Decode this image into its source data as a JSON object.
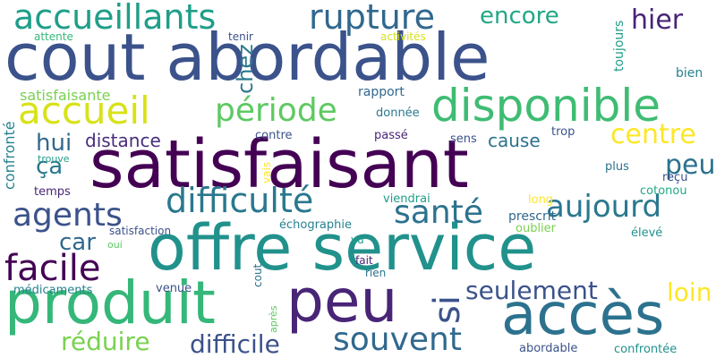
{
  "cloud": {
    "words": [
      {
        "text": "cout abordable",
        "color": "#3b528b"
      },
      {
        "text": "satisfaisant",
        "color": "#440154"
      },
      {
        "text": "offre service",
        "color": "#21918c"
      },
      {
        "text": "produit",
        "color": "#35b779"
      },
      {
        "text": "peu",
        "color": "#482576"
      },
      {
        "text": "accès",
        "color": "#2c728e"
      },
      {
        "text": "disponible",
        "color": "#3fbc73"
      },
      {
        "text": "accueillants",
        "color": "#1f9e89"
      },
      {
        "text": "rupture",
        "color": "#31688e"
      },
      {
        "text": "accueil",
        "color": "#d8e219"
      },
      {
        "text": "période",
        "color": "#5ec962"
      },
      {
        "text": "difficulté",
        "color": "#2a788e"
      },
      {
        "text": "agents",
        "color": "#3b528b"
      },
      {
        "text": "santé",
        "color": "#2c728e"
      },
      {
        "text": "facile",
        "color": "#440154"
      },
      {
        "text": "seulement",
        "color": "#3b528b"
      },
      {
        "text": "souvent",
        "color": "#31688e"
      },
      {
        "text": "réduire",
        "color": "#7ad151"
      },
      {
        "text": "difficile",
        "color": "#3b528b"
      },
      {
        "text": "aujourd",
        "color": "#2a788e"
      },
      {
        "text": "centre",
        "color": "#fde725"
      },
      {
        "text": "encore",
        "color": "#22a884"
      },
      {
        "text": "hier",
        "color": "#482576"
      },
      {
        "text": "peut",
        "color": "#2c728e"
      },
      {
        "text": "loin",
        "color": "#fde725"
      },
      {
        "text": "si",
        "color": "#3b528b"
      },
      {
        "text": "hui",
        "color": "#31688e"
      },
      {
        "text": "ça",
        "color": "#2a788e"
      },
      {
        "text": "car",
        "color": "#31688e"
      },
      {
        "text": "distance",
        "color": "#472d7b"
      },
      {
        "text": "cause",
        "color": "#2c728e"
      },
      {
        "text": "chez",
        "color": "#2a788e"
      },
      {
        "text": "confronté",
        "color": "#26828e"
      },
      {
        "text": "satisfaisante",
        "color": "#7ad151"
      },
      {
        "text": "attente",
        "color": "#35b779"
      },
      {
        "text": "tenir",
        "color": "#3b528b"
      },
      {
        "text": "activités",
        "color": "#d8e219"
      },
      {
        "text": "toujours",
        "color": "#1f9e89"
      },
      {
        "text": "bien",
        "color": "#26828e"
      },
      {
        "text": "rapport",
        "color": "#31688e"
      },
      {
        "text": "donnée",
        "color": "#2a788e"
      },
      {
        "text": "contre",
        "color": "#3b528b"
      },
      {
        "text": "passé",
        "color": "#482576"
      },
      {
        "text": "sens",
        "color": "#3b528b"
      },
      {
        "text": "trop",
        "color": "#3b528b"
      },
      {
        "text": "trouve",
        "color": "#1f9e89"
      },
      {
        "text": "temps",
        "color": "#482576"
      },
      {
        "text": "vais",
        "color": "#fde725"
      },
      {
        "text": "viendrai",
        "color": "#1f9e89"
      },
      {
        "text": "échographie",
        "color": "#26828e"
      },
      {
        "text": "prescrit",
        "color": "#31688e"
      },
      {
        "text": "long",
        "color": "#fde725"
      },
      {
        "text": "plus",
        "color": "#2c728e"
      },
      {
        "text": "reçu",
        "color": "#3b528b"
      },
      {
        "text": "cotonou",
        "color": "#22a884"
      },
      {
        "text": "satisfaction",
        "color": "#3b528b"
      },
      {
        "text": "oui",
        "color": "#5ec962"
      },
      {
        "text": "vu",
        "color": "#1f9e89"
      },
      {
        "text": "oublier",
        "color": "#7ad151"
      },
      {
        "text": "élevé",
        "color": "#21918c"
      },
      {
        "text": "fait",
        "color": "#482576"
      },
      {
        "text": "rien",
        "color": "#2c728e"
      },
      {
        "text": "cout",
        "color": "#2c728e"
      },
      {
        "text": "médicaments",
        "color": "#26828e"
      },
      {
        "text": "venue",
        "color": "#3b528b"
      },
      {
        "text": "après",
        "color": "#5ec962"
      },
      {
        "text": "abordable",
        "color": "#3b528b"
      },
      {
        "text": "confrontée",
        "color": "#21918c"
      }
    ]
  }
}
